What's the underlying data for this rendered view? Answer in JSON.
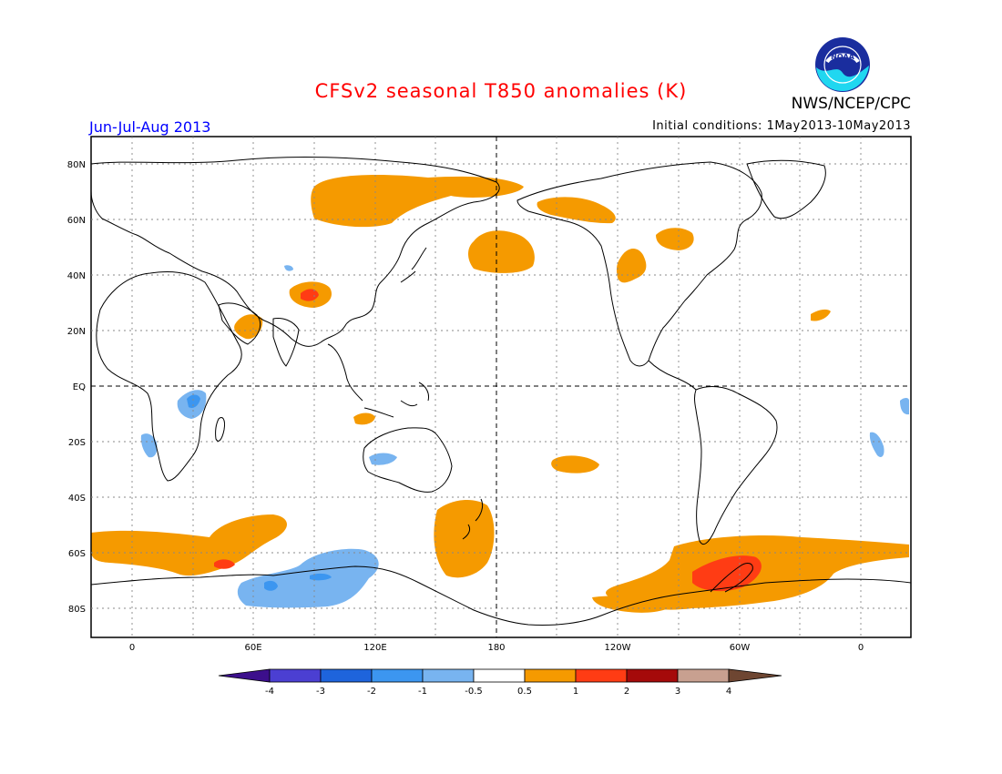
{
  "header": {
    "title": "CFSv2 seasonal T850 anomalies (K)",
    "agency": "NWS/NCEP/CPC",
    "season": "Jun-Jul-Aug 2013",
    "initial_conditions": "Initial conditions: 1May2013-10May2013",
    "logo_text": "NOAA"
  },
  "map": {
    "lat_labels": [
      "80N",
      "60N",
      "40N",
      "20N",
      "EQ",
      "20S",
      "40S",
      "60S",
      "80S"
    ],
    "lon_labels": [
      "0",
      "60E",
      "120E",
      "180",
      "120W",
      "60W",
      "0"
    ]
  },
  "legend": {
    "labels": [
      "-4",
      "-3",
      "-2",
      "-1",
      "-0.5",
      "0.5",
      "1",
      "2",
      "3",
      "4"
    ],
    "colors": {
      "lt_neg4": "#3c0f8c",
      "neg4_neg3": "#4b3fd2",
      "neg3_neg2": "#1e64dc",
      "neg2_neg1": "#3c96f0",
      "neg1_neg05": "#78b4f0",
      "neutral": "#ffffff",
      "pos05_1": "#f59a00",
      "pos1_2": "#ff3c14",
      "pos2_3": "#a50a0a",
      "pos3_4": "#c8a090",
      "gt4": "#6e4632"
    }
  }
}
